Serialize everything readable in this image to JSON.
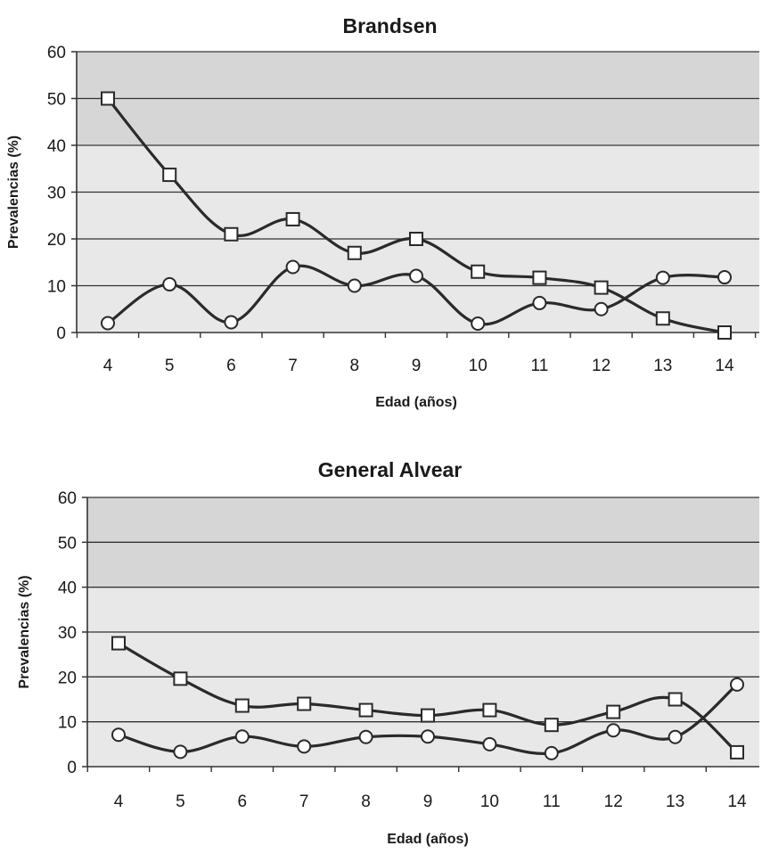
{
  "chart_data": [
    {
      "type": "line",
      "title": "Brandsen",
      "xlabel": "Edad (años)",
      "ylabel": "Prevalencias (%)",
      "categories": [
        "4",
        "5",
        "6",
        "7",
        "8",
        "9",
        "10",
        "11",
        "12",
        "13",
        "14"
      ],
      "ylim": [
        0,
        60
      ],
      "yticks": [
        "0",
        "10",
        "20",
        "30",
        "40",
        "50",
        "60"
      ],
      "grid": true,
      "series": [
        {
          "marker": "square",
          "values": [
            50,
            33.7,
            21,
            24.2,
            17,
            20,
            13,
            11.7,
            9.6,
            3,
            0
          ]
        },
        {
          "marker": "circle",
          "values": [
            2,
            10.3,
            2.2,
            14,
            10,
            12.1,
            1.9,
            6.3,
            5,
            11.7,
            11.8
          ]
        }
      ]
    },
    {
      "type": "line",
      "title": "General Alvear",
      "xlabel": "Edad (años)",
      "ylabel": "Prevalencias (%)",
      "categories": [
        "4",
        "5",
        "6",
        "7",
        "8",
        "9",
        "10",
        "11",
        "12",
        "13",
        "14"
      ],
      "ylim": [
        0,
        60
      ],
      "yticks": [
        "0",
        "10",
        "20",
        "30",
        "40",
        "50",
        "60"
      ],
      "grid": true,
      "series": [
        {
          "marker": "square",
          "values": [
            27.5,
            19.6,
            13.6,
            14,
            12.6,
            11.4,
            12.6,
            9.3,
            12.2,
            15,
            3.2
          ]
        },
        {
          "marker": "circle",
          "values": [
            7.1,
            3.3,
            6.7,
            4.5,
            6.6,
            6.7,
            5,
            3,
            8.1,
            6.6,
            18.3
          ]
        }
      ]
    }
  ]
}
